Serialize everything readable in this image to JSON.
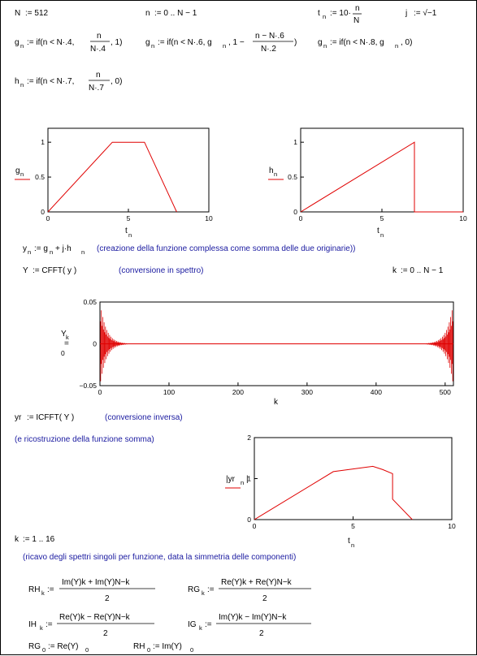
{
  "worksheet": {
    "defs": {
      "N_lhs": "N",
      "N_rhs": ":= 512",
      "n_lhs": "n",
      "n_rhs": ":= 0 .. N − 1",
      "t_lhs": "t",
      "t_sub": "n",
      "t_rhs": ":= 10·",
      "t_num": "n",
      "t_den": "N",
      "j_lhs": "j",
      "j_rhs": ":= √−1",
      "g1_lhs": "g",
      "g1_sub": "n",
      "g1_a": ":= if(n < N·.4, ",
      "g1_num": "n",
      "g1_den": "N·.4",
      "g1_b": ", 1)",
      "g2_lhs": "g",
      "g2_sub": "n",
      "g2_a": ":= if(n < N·.6, g",
      "g2_asub": "n",
      "g2_b": ", 1 − ",
      "g2_num": "n − N·.6",
      "g2_den": "N·.2",
      "g2_c": ")",
      "g3_lhs": "g",
      "g3_sub": "n",
      "g3_a": ":= if(n < N·.8, g",
      "g3_asub": "n",
      "g3_b": ", 0)",
      "h_lhs": "h",
      "h_sub": "n",
      "h_a": ":= if(n < N·.7, ",
      "h_num": "n",
      "h_den": "N·.7",
      "h_b": ", 0)"
    },
    "y_def": {
      "lhs": "y",
      "sub": "n",
      "rhs_a": ":= g",
      "rhs_asub": "n",
      "rhs_b": " + j·h",
      "rhs_bsub": "n",
      "comment": "(creazione della funzione complessa come somma delle due originarie))"
    },
    "Y_def": {
      "lhs": "Y",
      "rhs": ":= CFFT( y )",
      "comment": "(conversione in spettro)"
    },
    "k_def": {
      "lhs": "k",
      "rhs": ":= 0 .. N − 1"
    },
    "yr_def": {
      "lhs": "yr",
      "rhs": ":= ICFFT( Y )",
      "comment": "(conversione inversa)"
    },
    "recon_comment": "(e ricostruzione della funzione somma)",
    "k2_def": {
      "lhs": "k",
      "rhs": ":= 1 .. 16"
    },
    "spectra_comment": "(ricavo degli spettri singoli per funzione, data la simmetria delle componenti)",
    "formulas": {
      "RH_lhs": "RH",
      "RH_num": "Im(Y)k + Im(Y)N−k",
      "RH_den": "2",
      "RG_lhs": "RG",
      "RG_num": "Re(Y)k + Re(Y)N−k",
      "RG_den": "2",
      "IH_lhs": "IH",
      "IH_num": "Re(Y)k − Re(Y)N−k",
      "IH_den": "2",
      "IG_lhs": "IG",
      "IG_num": "Im(Y)k − Im(Y)N−k",
      "IG_den": "2",
      "sub_k": "k",
      "assign": ":=",
      "RG0_lhs": "RG",
      "RG0_rhs": ":= Re(Y)",
      "RH0_lhs": "RH",
      "RH0_rhs": ":= Im(Y)",
      "sub_0": "0"
    }
  },
  "colors": {
    "trace": "#e00000",
    "axis": "#000000",
    "comment": "#1a1aa0"
  },
  "chart_data": [
    {
      "type": "line",
      "ylabel": "g",
      "ylabel_sub": "n",
      "xlabel": "t",
      "xlabel_sub": "n",
      "xlim": [
        0,
        10
      ],
      "ylim": [
        0,
        1.2
      ],
      "x_ticks": [
        "0",
        "5",
        "10"
      ],
      "y_ticks": [
        "0",
        "0.5",
        "1"
      ],
      "series": [
        {
          "x": [
            0,
            4,
            6,
            8
          ],
          "y": [
            0,
            1,
            1,
            0
          ]
        }
      ]
    },
    {
      "type": "line",
      "ylabel": "h",
      "ylabel_sub": "n",
      "xlabel": "t",
      "xlabel_sub": "n",
      "xlim": [
        0,
        10
      ],
      "ylim": [
        0,
        1.2
      ],
      "x_ticks": [
        "0",
        "5",
        "10"
      ],
      "y_ticks": [
        "0",
        "0.5",
        "1"
      ],
      "series": [
        {
          "x": [
            0,
            7,
            7,
            10
          ],
          "y": [
            0,
            1,
            0,
            0
          ]
        }
      ]
    },
    {
      "type": "line",
      "ylabel": "Y",
      "ylabel_sub": "k",
      "ylabel_marker": "=",
      "ylabel_extra": "0",
      "xlabel": "k",
      "xlim": [
        0,
        512
      ],
      "ylim": [
        -0.05,
        0.05
      ],
      "x_ticks": [
        "0",
        "100",
        "200",
        "300",
        "400",
        "500"
      ],
      "y_ticks": [
        "−0.05",
        "0",
        "0.05"
      ],
      "series": [
        {
          "name": "",
          "x": [
            0,
            512
          ],
          "y": [
            0,
            0
          ]
        }
      ]
    },
    {
      "type": "line",
      "ylabel": "|yr",
      "ylabel_sub": "n",
      "ylabel_end": "|",
      "xlabel": "t",
      "xlabel_sub": "n",
      "xlim": [
        0,
        10
      ],
      "ylim": [
        0,
        2
      ],
      "x_ticks": [
        "0",
        "5",
        "10"
      ],
      "y_ticks": [
        "0",
        "1",
        "2"
      ],
      "series": [
        {
          "x": [
            0,
            4,
            6,
            6.5,
            7,
            7,
            8
          ],
          "y": [
            0,
            1.17,
            1.3,
            1.22,
            1.12,
            0.5,
            0
          ]
        }
      ]
    }
  ]
}
